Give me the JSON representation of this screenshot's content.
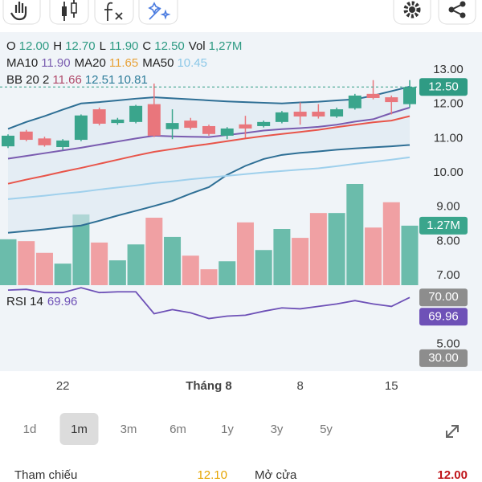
{
  "chart_data": {
    "type": "candlestick",
    "legend": [
      [
        {
          "label": "O",
          "value": "12.00",
          "color": "#2f9b84"
        },
        {
          "label": "H",
          "value": "12.70",
          "color": "#2f9b84"
        },
        {
          "label": "L",
          "value": "11.90",
          "color": "#2f9b84"
        },
        {
          "label": "C",
          "value": "12.50",
          "color": "#2f9b84"
        },
        {
          "label": "Vol",
          "value": "1,27M",
          "color": "#2f9b84"
        }
      ],
      [
        {
          "label": "MA10",
          "value": "11.90",
          "color": "#7a5cb0"
        },
        {
          "label": "MA20",
          "value": "11.65",
          "color": "#e8a33a"
        },
        {
          "label": "MA50",
          "value": "10.45",
          "color": "#8cc8e8"
        }
      ],
      [
        {
          "label": "BB 20 2",
          "value": "11.66",
          "color": "#b04a6a"
        },
        {
          "value": "12.51",
          "color": "#2e7d9a"
        },
        {
          "value": "10.81",
          "color": "#2e7d9a"
        }
      ]
    ],
    "categories": [
      null,
      null,
      null,
      "22",
      null,
      null,
      null,
      null,
      null,
      null,
      null,
      "Tháng 8",
      null,
      null,
      null,
      null,
      "8",
      null,
      null,
      null,
      null,
      "15",
      null
    ],
    "open": [
      10.77,
      11.2,
      11.0,
      10.75,
      10.96,
      11.85,
      11.45,
      11.48,
      12.0,
      11.27,
      11.52,
      11.36,
      11.08,
      11.41,
      11.36,
      11.48,
      11.78,
      11.78,
      11.64,
      11.88,
      12.3,
      12.2,
      12.0
    ],
    "high": [
      11.12,
      11.25,
      11.05,
      10.98,
      11.7,
      11.9,
      11.6,
      11.98,
      12.6,
      11.85,
      11.6,
      11.4,
      11.33,
      11.66,
      11.52,
      11.8,
      12.05,
      12.0,
      11.9,
      12.3,
      12.7,
      12.25,
      12.7
    ],
    "low": [
      10.72,
      10.92,
      10.76,
      10.66,
      10.92,
      11.38,
      11.4,
      11.44,
      11.04,
      10.98,
      11.26,
      11.08,
      10.98,
      11.02,
      11.32,
      11.44,
      11.4,
      11.58,
      11.6,
      11.84,
      12.14,
      11.7,
      11.9
    ],
    "close": [
      11.08,
      10.96,
      10.8,
      10.94,
      11.67,
      11.43,
      11.55,
      11.95,
      11.08,
      11.45,
      11.31,
      11.13,
      11.29,
      11.29,
      11.48,
      11.76,
      11.64,
      11.64,
      11.85,
      12.25,
      12.18,
      12.06,
      12.5
    ],
    "up_color": "#3aa58c",
    "down_color": "#e9767c",
    "volume": [
      0.98,
      0.94,
      0.69,
      0.46,
      1.51,
      0.91,
      0.53,
      0.87,
      1.44,
      1.03,
      0.63,
      0.34,
      0.51,
      1.34,
      0.75,
      1.2,
      1.01,
      1.54,
      1.54,
      2.16,
      1.23,
      1.77,
      1.27
    ],
    "volume_ylim": [
      0,
      5.4
    ],
    "volume_up_color": "#6bbcab",
    "volume_down_color": "#f0a0a3",
    "overlays": [
      {
        "color": "#2e6f95",
        "values": [
          11.28,
          11.48,
          11.65,
          11.84,
          12.02,
          12.06,
          12.11,
          12.16,
          12.2,
          12.17,
          12.14,
          12.11,
          12.08,
          12.06,
          12.04,
          12.02,
          12.05,
          12.07,
          12.11,
          12.14,
          12.25,
          12.38,
          12.51
        ]
      },
      {
        "color": "#2e6f95",
        "values": [
          8.25,
          8.3,
          8.35,
          8.41,
          8.46,
          8.6,
          8.75,
          8.89,
          9.03,
          9.18,
          9.39,
          9.58,
          9.94,
          10.2,
          10.4,
          10.52,
          10.58,
          10.62,
          10.67,
          10.71,
          10.74,
          10.77,
          10.81
        ]
      },
      {
        "color": "#9fd0ec",
        "values": [
          9.23,
          9.28,
          9.33,
          9.39,
          9.44,
          9.51,
          9.57,
          9.63,
          9.7,
          9.75,
          9.81,
          9.86,
          9.91,
          9.96,
          10.01,
          10.05,
          10.09,
          10.13,
          10.19,
          10.26,
          10.32,
          10.38,
          10.45
        ]
      },
      {
        "color": "#e8554a",
        "values": [
          9.68,
          9.8,
          9.91,
          10.03,
          10.14,
          10.26,
          10.38,
          10.5,
          10.61,
          10.69,
          10.77,
          10.84,
          10.92,
          11.0,
          11.07,
          11.13,
          11.19,
          11.25,
          11.33,
          11.4,
          11.47,
          11.52,
          11.65
        ]
      },
      {
        "color": "#7a5cb0",
        "values": [
          10.41,
          10.49,
          10.57,
          10.65,
          10.73,
          10.82,
          10.91,
          11.0,
          11.08,
          11.06,
          11.05,
          11.04,
          11.1,
          11.16,
          11.23,
          11.27,
          11.3,
          11.34,
          11.4,
          11.49,
          11.56,
          11.74,
          11.9
        ]
      }
    ],
    "band_fill": "#dce8f1",
    "ylim": [
      4.8,
      14.1
    ],
    "yticks": [
      {
        "value": 13,
        "label": "13.00"
      },
      {
        "value": 12,
        "label": "12.00"
      },
      {
        "value": 11,
        "label": "11.00"
      },
      {
        "value": 10,
        "label": "10.00"
      },
      {
        "value": 9,
        "label": "9.00"
      },
      {
        "value": 8,
        "label": "8.00"
      },
      {
        "value": 7,
        "label": "7.00"
      },
      {
        "value": 5,
        "label": "5.00"
      }
    ],
    "last_price": {
      "value": 12.5,
      "label": "12.50"
    },
    "last_volume": {
      "value": 1.27,
      "label": "1.27M"
    },
    "rsi": {
      "label": "RSI 14",
      "last_label": "69.96",
      "color": "#6e51b7",
      "values": [
        74.8,
        75.3,
        73.2,
        73.2,
        76.4,
        73.2,
        73.7,
        73.7,
        59.3,
        62.0,
        59.9,
        56.1,
        57.7,
        58.3,
        60.9,
        63.1,
        62.5,
        64.1,
        65.7,
        67.9,
        65.7,
        64.1,
        69.96
      ],
      "ylim": [
        22,
        77
      ],
      "yticks": [
        {
          "value": 70,
          "label": "70.00"
        },
        {
          "value": 30,
          "label": "30.00"
        }
      ]
    }
  },
  "periods": {
    "items": [
      "1d",
      "1m",
      "3m",
      "6m",
      "1y",
      "3y",
      "5y"
    ],
    "selected": "1m"
  },
  "quote": [
    {
      "label": "Tham chiếu",
      "value": "12.10",
      "color": "#e6a400"
    },
    {
      "label": "Mở cửa",
      "value": "12.00",
      "color": "#c0161b"
    }
  ]
}
